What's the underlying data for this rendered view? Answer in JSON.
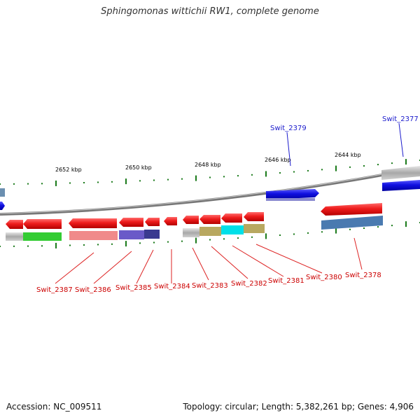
{
  "title": "Sphingomonas wittichii RW1, complete genome",
  "footer": {
    "accession": "Accession: NC_009511",
    "summary": "Topology: circular; Length: 5,382,261 bp; Genes: 4,906"
  },
  "scale_labels": [
    "2652 kbp",
    "2650 kbp",
    "2648 kbp",
    "2646 kbp",
    "2644 kbp"
  ],
  "colors": {
    "forward_gene": "#1a1ae6",
    "reverse_gene": "#e8101a",
    "backbone": "#8a8a8a",
    "tick": "#1a7a1a",
    "label_red": "#cc0000",
    "label_blue": "#1a1acc"
  },
  "genes": [
    {
      "id": "Swit_2387",
      "strand": "reverse",
      "label_color": "red"
    },
    {
      "id": "Swit_2386",
      "strand": "reverse",
      "label_color": "red"
    },
    {
      "id": "Swit_2385",
      "strand": "reverse",
      "label_color": "red"
    },
    {
      "id": "Swit_2384",
      "strand": "reverse",
      "label_color": "red"
    },
    {
      "id": "Swit_2383",
      "strand": "reverse",
      "label_color": "red"
    },
    {
      "id": "Swit_2382",
      "strand": "reverse",
      "label_color": "red"
    },
    {
      "id": "Swit_2381",
      "strand": "reverse",
      "label_color": "red"
    },
    {
      "id": "Swit_2380",
      "strand": "reverse",
      "label_color": "red"
    },
    {
      "id": "Swit_2378",
      "strand": "reverse",
      "label_color": "red"
    },
    {
      "id": "Swit_2379",
      "strand": "forward",
      "label_color": "blue"
    },
    {
      "id": "Swit_2377",
      "strand": "forward",
      "label_color": "blue"
    }
  ]
}
